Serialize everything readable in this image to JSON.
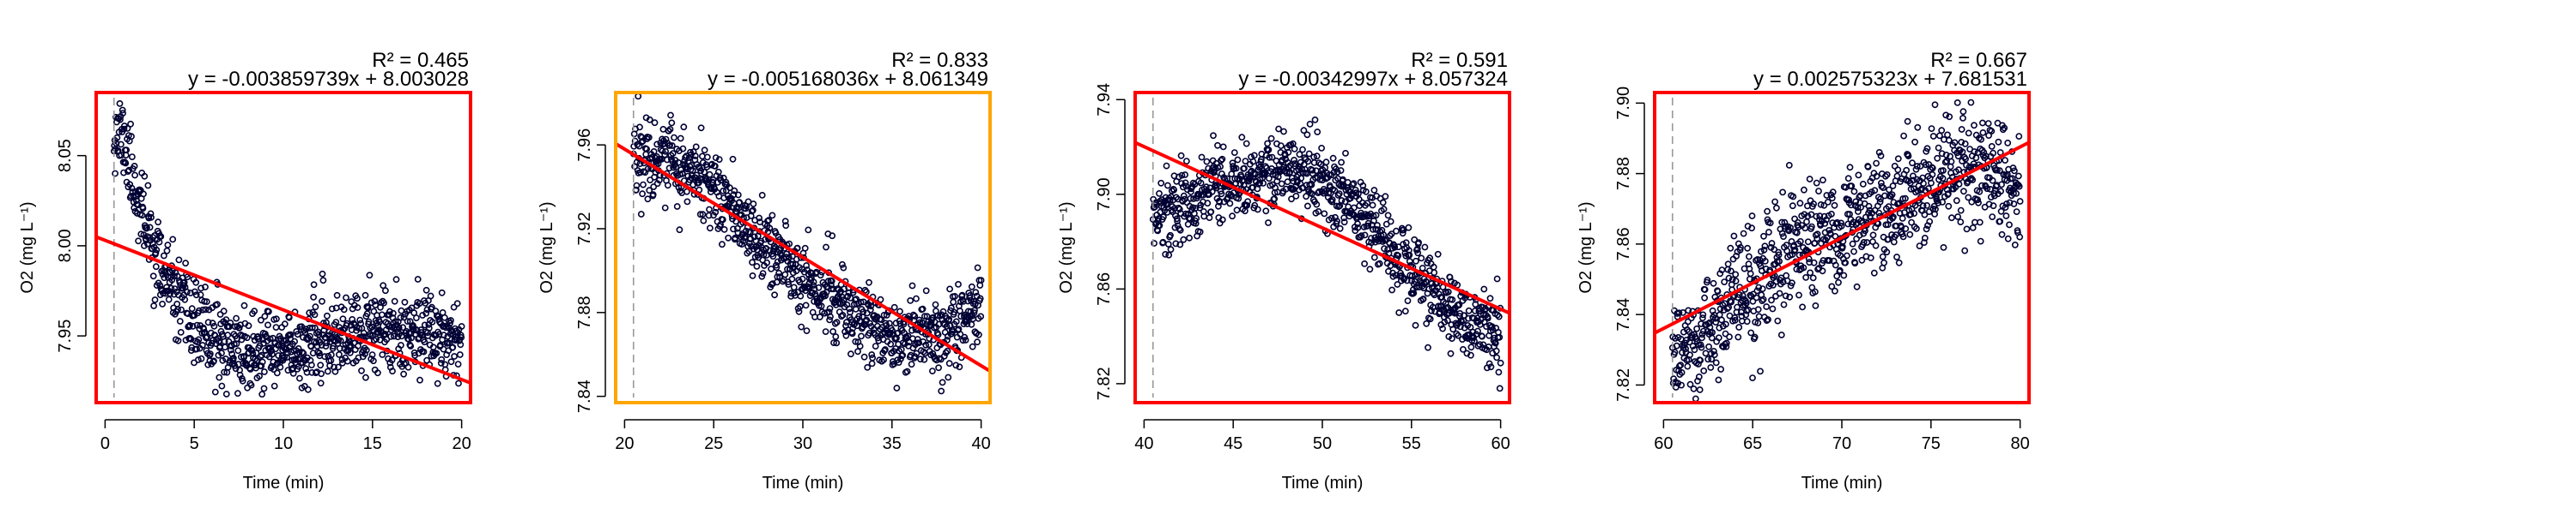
{
  "chart_data": [
    {
      "type": "scatter",
      "frame_color": "#ff0000",
      "point_color": "#000033",
      "fit_color": "#ff0000",
      "vline_color": "#999999",
      "xlabel": "Time (min)",
      "ylabel": "O2 (mg L⁻¹)",
      "r2_label": "R² = 0.465",
      "equation": "y = -0.003859739x + 8.003028",
      "fit": {
        "slope": -0.003859739,
        "intercept": 8.003028
      },
      "xlim": [
        -0.5,
        20.5
      ],
      "ylim": [
        7.913,
        8.085
      ],
      "xticks": [
        0,
        5,
        10,
        15,
        20
      ],
      "xtick_labels": [
        "0",
        "5",
        "10",
        "15",
        "20"
      ],
      "yticks": [
        7.95,
        8.0,
        8.05
      ],
      "ytick_labels": [
        "7.95",
        "8.00",
        "8.05"
      ],
      "vline_x": 0.5,
      "trend": [
        [
          0.5,
          8.065
        ],
        [
          1.0,
          8.06
        ],
        [
          1.5,
          8.04
        ],
        [
          2.0,
          8.02
        ],
        [
          2.5,
          8.005
        ],
        [
          3.0,
          7.99
        ],
        [
          3.5,
          7.98
        ],
        [
          4.0,
          7.97
        ],
        [
          5.0,
          7.957
        ],
        [
          6.0,
          7.949
        ],
        [
          7.0,
          7.945
        ],
        [
          8.0,
          7.941
        ],
        [
          9.0,
          7.94
        ],
        [
          10.0,
          7.941
        ],
        [
          11.0,
          7.944
        ],
        [
          12.0,
          7.946
        ],
        [
          13.0,
          7.948
        ],
        [
          14.0,
          7.95
        ],
        [
          15.0,
          7.951
        ],
        [
          16.0,
          7.953
        ],
        [
          17.0,
          7.954
        ],
        [
          18.0,
          7.953
        ],
        [
          19.0,
          7.952
        ],
        [
          20.0,
          7.95
        ]
      ],
      "noise": 0.011,
      "n_points": 900,
      "seed": 11
    },
    {
      "type": "scatter",
      "frame_color": "#ffa500",
      "point_color": "#000033",
      "fit_color": "#ff0000",
      "vline_color": "#999999",
      "xlabel": "Time (min)",
      "ylabel": "O2 (mg L⁻¹)",
      "r2_label": "R² = 0.833",
      "equation": "y = -0.005168036x + 8.061349",
      "fit": {
        "slope": -0.005168036,
        "intercept": 8.061349
      },
      "xlim": [
        19.5,
        40.5
      ],
      "ylim": [
        7.837,
        7.985
      ],
      "xticks": [
        20,
        25,
        30,
        35,
        40
      ],
      "xtick_labels": [
        "20",
        "25",
        "30",
        "35",
        "40"
      ],
      "yticks": [
        7.84,
        7.88,
        7.92,
        7.96
      ],
      "ytick_labels": [
        "7.84",
        "7.88",
        "7.92",
        "7.96"
      ],
      "vline_x": 20.5,
      "trend": [
        [
          20.5,
          7.955
        ],
        [
          22.0,
          7.955
        ],
        [
          24.0,
          7.945
        ],
        [
          26.0,
          7.93
        ],
        [
          28.0,
          7.91
        ],
        [
          30.0,
          7.895
        ],
        [
          32.0,
          7.885
        ],
        [
          34.0,
          7.873
        ],
        [
          36.0,
          7.868
        ],
        [
          38.0,
          7.868
        ],
        [
          39.0,
          7.875
        ],
        [
          40.0,
          7.885
        ]
      ],
      "noise": 0.009,
      "n_points": 900,
      "seed": 22
    },
    {
      "type": "scatter",
      "frame_color": "#ff0000",
      "point_color": "#000033",
      "fit_color": "#ff0000",
      "vline_color": "#999999",
      "xlabel": "Time (min)",
      "ylabel": "O2 (mg L⁻¹)",
      "r2_label": "R² = 0.591",
      "equation": "y = -0.00342997x + 8.057324",
      "fit": {
        "slope": -0.00342997,
        "intercept": 8.057324
      },
      "xlim": [
        39.5,
        60.5
      ],
      "ylim": [
        7.812,
        7.943
      ],
      "xticks": [
        40,
        45,
        50,
        55,
        60
      ],
      "xtick_labels": [
        "40",
        "45",
        "50",
        "55",
        "60"
      ],
      "yticks": [
        7.82,
        7.86,
        7.9,
        7.94
      ],
      "ytick_labels": [
        "7.82",
        "7.86",
        "7.90",
        "7.94"
      ],
      "vline_x": 40.5,
      "trend": [
        [
          40.5,
          7.89
        ],
        [
          42.0,
          7.895
        ],
        [
          44.0,
          7.903
        ],
        [
          46.0,
          7.907
        ],
        [
          48.0,
          7.91
        ],
        [
          50.0,
          7.905
        ],
        [
          52.0,
          7.893
        ],
        [
          54.0,
          7.877
        ],
        [
          56.0,
          7.86
        ],
        [
          58.0,
          7.845
        ],
        [
          60.0,
          7.838
        ]
      ],
      "noise": 0.008,
      "n_points": 900,
      "seed": 33
    },
    {
      "type": "scatter",
      "frame_color": "#ff0000",
      "point_color": "#000033",
      "fit_color": "#ff0000",
      "vline_color": "#999999",
      "xlabel": "Time (min)",
      "ylabel": "O2 (mg L⁻¹)",
      "r2_label": "R² = 0.667",
      "equation": "y = 0.002575323x + 7.681531",
      "fit": {
        "slope": 0.002575323,
        "intercept": 7.681531
      },
      "xlim": [
        59.5,
        80.5
      ],
      "ylim": [
        7.815,
        7.903
      ],
      "xticks": [
        60,
        65,
        70,
        75,
        80
      ],
      "xtick_labels": [
        "60",
        "65",
        "70",
        "75",
        "80"
      ],
      "yticks": [
        7.82,
        7.84,
        7.86,
        7.88,
        7.9
      ],
      "ytick_labels": [
        "7.82",
        "7.84",
        "7.86",
        "7.88",
        "7.90"
      ],
      "vline_x": 60.5,
      "trend": [
        [
          60.5,
          7.828
        ],
        [
          62.0,
          7.832
        ],
        [
          64.0,
          7.843
        ],
        [
          66.0,
          7.852
        ],
        [
          68.0,
          7.86
        ],
        [
          70.0,
          7.865
        ],
        [
          72.0,
          7.868
        ],
        [
          74.0,
          7.874
        ],
        [
          76.0,
          7.88
        ],
        [
          78.0,
          7.882
        ],
        [
          80.0,
          7.874
        ]
      ],
      "noise": 0.008,
      "n_points": 900,
      "seed": 44
    }
  ]
}
